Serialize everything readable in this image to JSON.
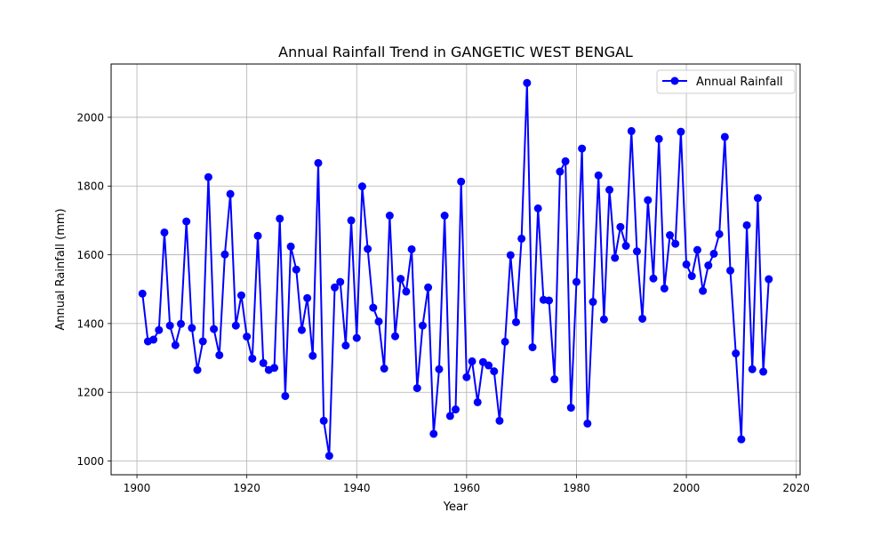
{
  "chart_data": {
    "type": "line",
    "title": "Annual Rainfall Trend in GANGETIC WEST BENGAL",
    "xlabel": "Year",
    "ylabel": "Annual Rainfall (mm)",
    "xlim": [
      1895.3,
      2020.7
    ],
    "ylim": [
      960,
      2155
    ],
    "xticks": [
      1900,
      1920,
      1940,
      1960,
      1980,
      2000,
      2020
    ],
    "yticks": [
      1000,
      1200,
      1400,
      1600,
      1800,
      2000
    ],
    "grid": true,
    "legend_position": "top-right",
    "series": [
      {
        "name": "Annual Rainfall",
        "color": "#0000ff",
        "marker": "circle",
        "x": [
          1901,
          1902,
          1903,
          1904,
          1905,
          1906,
          1907,
          1908,
          1909,
          1910,
          1911,
          1912,
          1913,
          1914,
          1915,
          1916,
          1917,
          1918,
          1919,
          1920,
          1921,
          1922,
          1923,
          1924,
          1925,
          1926,
          1927,
          1928,
          1929,
          1930,
          1931,
          1932,
          1933,
          1934,
          1935,
          1936,
          1937,
          1938,
          1939,
          1940,
          1941,
          1942,
          1943,
          1944,
          1945,
          1946,
          1947,
          1948,
          1949,
          1950,
          1951,
          1952,
          1953,
          1954,
          1955,
          1956,
          1957,
          1958,
          1959,
          1960,
          1961,
          1962,
          1963,
          1964,
          1965,
          1966,
          1967,
          1968,
          1969,
          1970,
          1971,
          1972,
          1973,
          1974,
          1975,
          1976,
          1977,
          1978,
          1979,
          1980,
          1981,
          1982,
          1983,
          1984,
          1985,
          1986,
          1987,
          1988,
          1989,
          1990,
          1991,
          1992,
          1993,
          1994,
          1995,
          1996,
          1997,
          1998,
          1999,
          2000,
          2001,
          2002,
          2003,
          2004,
          2005,
          2006,
          2007,
          2008,
          2009,
          2010,
          2011,
          2012,
          2013,
          2014,
          2015
        ],
        "values": [
          1487,
          1348,
          1353,
          1381,
          1665,
          1394,
          1337,
          1399,
          1697,
          1387,
          1265,
          1348,
          1826,
          1384,
          1308,
          1601,
          1777,
          1394,
          1482,
          1362,
          1298,
          1655,
          1285,
          1265,
          1271,
          1705,
          1189,
          1624,
          1557,
          1381,
          1474,
          1306,
          1867,
          1117,
          1015,
          1505,
          1521,
          1336,
          1700,
          1358,
          1799,
          1617,
          1446,
          1406,
          1269,
          1714,
          1363,
          1530,
          1493,
          1616,
          1212,
          1394,
          1505,
          1079,
          1267,
          1714,
          1131,
          1150,
          1813,
          1244,
          1290,
          1171,
          1288,
          1278,
          1261,
          1117,
          1347,
          1599,
          1404,
          1647,
          2100,
          1331,
          1735,
          1469,
          1467,
          1238,
          1842,
          1872,
          1155,
          1521,
          1909,
          1109,
          1463,
          1831,
          1412,
          1789,
          1591,
          1681,
          1626,
          1960,
          1610,
          1414,
          1759,
          1531,
          1937,
          1502,
          1657,
          1632,
          1958,
          1572,
          1538,
          1614,
          1495,
          1569,
          1603,
          1660,
          1943,
          1554,
          1313,
          1063,
          1686,
          1267,
          1765,
          1260,
          1529
        ]
      }
    ]
  }
}
